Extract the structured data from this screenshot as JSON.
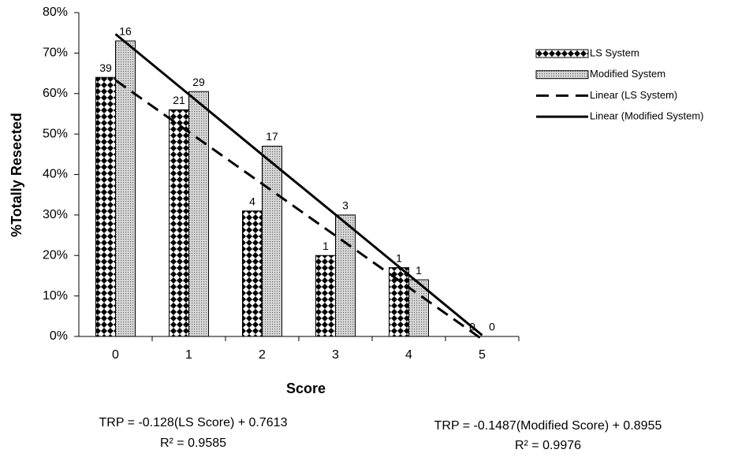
{
  "chart_data": {
    "type": "bar",
    "categories": [
      "0",
      "1",
      "2",
      "3",
      "4",
      "5"
    ],
    "x_label": "Score",
    "y_label": "%Totally Resected",
    "ylim": [
      0,
      80
    ],
    "yticks": [
      {
        "value": 0,
        "label": "0%"
      },
      {
        "value": 10,
        "label": "10%"
      },
      {
        "value": 20,
        "label": "20%"
      },
      {
        "value": 30,
        "label": "30%"
      },
      {
        "value": 40,
        "label": "40%"
      },
      {
        "value": 50,
        "label": "50%"
      },
      {
        "value": 60,
        "label": "60%"
      },
      {
        "value": 70,
        "label": "70%"
      },
      {
        "value": 80,
        "label": "80%"
      }
    ],
    "grid": false,
    "legend": "right",
    "series": [
      {
        "name": "LS System",
        "type": "bar",
        "pattern": "diamond",
        "values": [
          64,
          56,
          31,
          20,
          17,
          0
        ],
        "counts": [
          39,
          21,
          4,
          1,
          1,
          0
        ]
      },
      {
        "name": "Modified System",
        "type": "bar",
        "pattern": "dots",
        "values": [
          73,
          60.5,
          47,
          30,
          14,
          0
        ],
        "counts": [
          16,
          29,
          17,
          3,
          1,
          0
        ]
      },
      {
        "name": "Linear (LS System)",
        "type": "line",
        "dash": true,
        "color": "#000000",
        "values": [
          63.3,
          50.5,
          37.7,
          24.9,
          12.1,
          -0.7
        ]
      },
      {
        "name": "Linear (Modified System)",
        "type": "line",
        "dash": false,
        "color": "#000000",
        "values": [
          74.7,
          59.8,
          44.9,
          30.1,
          15.2,
          0.3
        ]
      }
    ],
    "equations": [
      {
        "formula": "TRP = -0.128(LS Score) + 0.7613",
        "r_squared": "R² = 0.9585"
      },
      {
        "formula": "TRP = -0.1487(Modified Score) + 0.8955",
        "r_squared": "R² = 0.9976"
      }
    ]
  }
}
